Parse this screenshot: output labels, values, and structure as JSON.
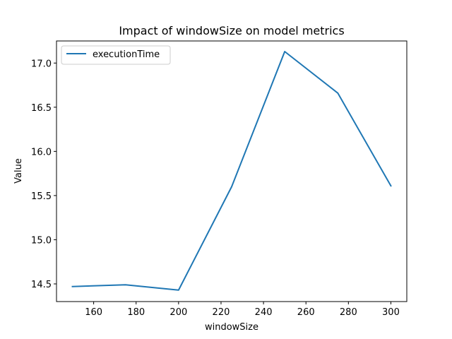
{
  "chart_data": {
    "type": "line",
    "title": "Impact of windowSize on model metrics",
    "xlabel": "windowSize",
    "ylabel": "Value",
    "xlim": [
      142.5,
      307.5
    ],
    "ylim": [
      14.3,
      17.25
    ],
    "xticks": [
      160,
      180,
      200,
      220,
      240,
      260,
      280,
      300
    ],
    "yticks": [
      14.5,
      15.0,
      15.5,
      16.0,
      16.5,
      17.0
    ],
    "ytick_labels": [
      "14.5",
      "15.0",
      "15.5",
      "16.0",
      "16.5",
      "17.0"
    ],
    "grid": false,
    "legend": "top-left",
    "series": [
      {
        "name": "executionTime",
        "color": "#1f77b4",
        "x": [
          150,
          175,
          200,
          225,
          250,
          275,
          300
        ],
        "y": [
          14.47,
          14.49,
          14.43,
          15.6,
          17.13,
          16.66,
          15.61
        ]
      }
    ]
  }
}
